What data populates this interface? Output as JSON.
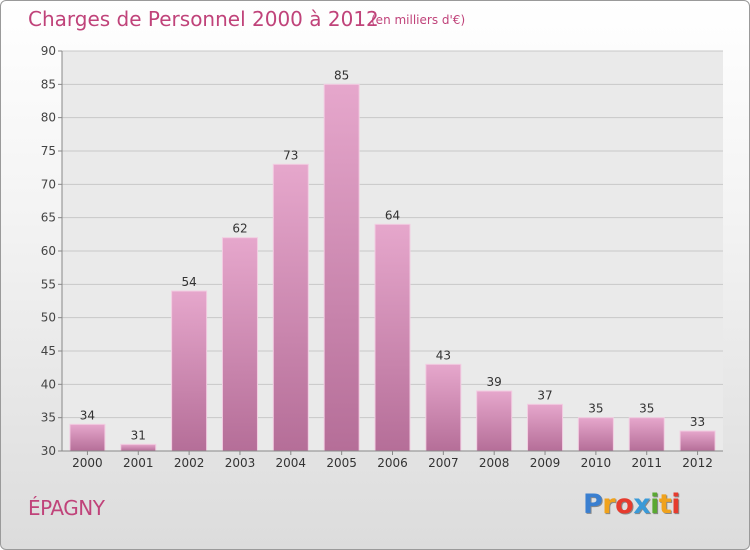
{
  "title": "Charges de Personnel 2000 à 2012",
  "subtitle": "(en milliers d'€)",
  "commune": "ÉPAGNY",
  "logo": {
    "letters": [
      "P",
      "r",
      "o",
      "x",
      "i",
      "t",
      "i"
    ],
    "colors": [
      "#3a7fd0",
      "#f0a21c",
      "#e63b2e",
      "#3a9ad8",
      "#5aa832",
      "#f0a21c",
      "#e63b2e"
    ]
  },
  "colors": {
    "bar_top": "#e6a7cc",
    "bar_bottom": "#b56e98",
    "accent": "#c0437a"
  },
  "chart_data": {
    "type": "bar",
    "categories": [
      "2000",
      "2001",
      "2002",
      "2003",
      "2004",
      "2005",
      "2006",
      "2007",
      "2008",
      "2009",
      "2010",
      "2011",
      "2012"
    ],
    "values": [
      34,
      31,
      54,
      62,
      73,
      85,
      64,
      43,
      39,
      37,
      35,
      35,
      33
    ],
    "data_labels": [
      "34",
      "31",
      "54",
      "62",
      "73",
      "85",
      "64",
      "43",
      "39",
      "37",
      "35",
      "35",
      "33"
    ],
    "yticks": [
      30,
      35,
      40,
      45,
      50,
      55,
      60,
      65,
      70,
      75,
      80,
      85,
      90
    ],
    "ytick_labels": [
      "30",
      "35",
      "40",
      "45",
      "50",
      "55",
      "60",
      "65",
      "70",
      "75",
      "80",
      "85",
      "90"
    ],
    "ylim": [
      30,
      90
    ],
    "grid": true
  }
}
